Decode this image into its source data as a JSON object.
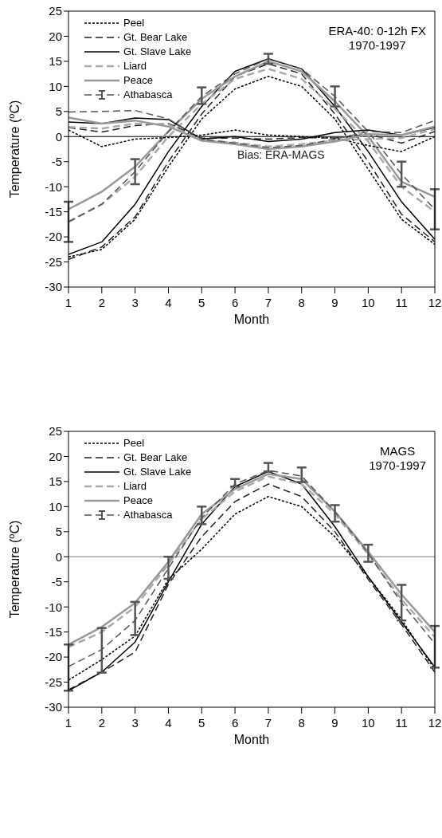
{
  "chart_data": [
    {
      "type": "line",
      "annotations": [
        "ERA-40: 0-12h FX",
        "1970-1997",
        "Bias: ERA-MAGS"
      ],
      "xlabel": "Month",
      "ylabel": "Temperature ($^{o}$C)",
      "x": [
        1,
        2,
        3,
        4,
        5,
        6,
        7,
        8,
        9,
        10,
        11,
        12
      ],
      "xlim": [
        1,
        12
      ],
      "xticks": [
        1,
        2,
        3,
        4,
        5,
        6,
        7,
        8,
        9,
        10,
        11,
        12
      ],
      "ylim": [
        -30,
        25
      ],
      "yticks": [
        -30,
        -25,
        -20,
        -15,
        -10,
        -5,
        0,
        5,
        10,
        15,
        20,
        25
      ],
      "legend": "top left",
      "marker": "none",
      "ref_lines": [
        {
          "axis": "y",
          "value": 0,
          "color": "#000000"
        }
      ],
      "series": [
        {
          "name": "Peel",
          "color": "#000000",
          "line_style": "dotted",
          "values": [
            -24,
            -22.5,
            -16.5,
            -6,
            3.5,
            9.5,
            12,
            10,
            3.5,
            -6.5,
            -16.5,
            -21.5
          ]
        },
        {
          "name": "Gt. Bear Lake",
          "color": "#222222",
          "line_style": "dashed",
          "values": [
            -24.5,
            -22,
            -16,
            -5,
            4.5,
            12,
            14.5,
            12.5,
            4.5,
            -5,
            -15.5,
            -21
          ]
        },
        {
          "name": "Gt. Slave Lake",
          "color": "#000000",
          "line_style": "solid",
          "values": [
            -23.5,
            -21,
            -13.5,
            -3,
            6,
            13,
            15.5,
            13.5,
            6,
            -3,
            -13,
            -20.5
          ]
        },
        {
          "name": "Liard",
          "color": "#aaaaaa",
          "line_style": "dashed",
          "values": [
            -17,
            -13.5,
            -8,
            0,
            6.5,
            11.5,
            13.5,
            11.5,
            5.5,
            -1,
            -10,
            -15
          ]
        },
        {
          "name": "Peace",
          "color": "#999999",
          "line_style": "solid",
          "values": [
            -14.5,
            -11,
            -6,
            1,
            7.5,
            12,
            15,
            13,
            7,
            0,
            -9,
            -12
          ]
        },
        {
          "name": "Athabasca",
          "color": "#555555",
          "line_style": "dashed",
          "values": [
            -17,
            -13.5,
            -7,
            1,
            8,
            12.5,
            15.5,
            13.5,
            8,
            1,
            -7.5,
            -14.5
          ],
          "errors": [
            [
              -21,
              -13
            ],
            null,
            [
              -9.5,
              -4.5
            ],
            null,
            [
              6.5,
              9.8
            ],
            null,
            [
              14.5,
              16.5
            ],
            null,
            [
              6,
              10
            ],
            null,
            [
              -10,
              -5
            ],
            [
              -18.5,
              -10.5
            ]
          ]
        },
        {
          "color": "#000000",
          "line_style": "dotted",
          "values": [
            1.3,
            -2,
            -0.5,
            -0.2,
            0.3,
            1.3,
            0.3,
            0,
            -0.3,
            -1.8,
            -3,
            0
          ]
        },
        {
          "color": "#222222",
          "line_style": "dashed",
          "values": [
            1.8,
            0.9,
            2.2,
            2.6,
            -0.3,
            -0.3,
            -0.5,
            -0.2,
            -0.3,
            0.5,
            -1.3,
            1
          ]
        },
        {
          "color": "#000000",
          "line_style": "solid",
          "values": [
            2.9,
            2.6,
            3.7,
            3.4,
            -0.5,
            0,
            -1,
            -0.5,
            0.8,
            1.3,
            0.3,
            1.8
          ]
        },
        {
          "color": "#aaaaaa",
          "line_style": "dashed",
          "values": [
            1.9,
            1.6,
            2.6,
            2.4,
            -0.8,
            -1.2,
            -2,
            -1.5,
            -0.8,
            -0.5,
            -0.3,
            1.5
          ]
        },
        {
          "color": "#999999",
          "line_style": "solid",
          "values": [
            3.8,
            2.6,
            3.2,
            2,
            -0.8,
            -1.5,
            -2.5,
            -2,
            -1,
            0.5,
            0.3,
            2
          ]
        },
        {
          "color": "#555555",
          "line_style": "dashed",
          "values": [
            4.9,
            5,
            5.2,
            3.5,
            -0.5,
            -1.3,
            -2.2,
            -1.8,
            -0.5,
            1,
            0.8,
            3.2
          ]
        }
      ]
    },
    {
      "type": "line",
      "annotations": [
        "MAGS",
        "1970-1997"
      ],
      "xlabel": "Month",
      "ylabel": "Temperature ($^{o}$C)",
      "x": [
        1,
        2,
        3,
        4,
        5,
        6,
        7,
        8,
        9,
        10,
        11,
        12
      ],
      "xlim": [
        1,
        12
      ],
      "xticks": [
        1,
        2,
        3,
        4,
        5,
        6,
        7,
        8,
        9,
        10,
        11,
        12
      ],
      "ylim": [
        -30,
        25
      ],
      "yticks": [
        -30,
        -25,
        -20,
        -15,
        -10,
        -5,
        0,
        5,
        10,
        15,
        20,
        25
      ],
      "legend": "top left",
      "marker": "none",
      "ref_lines": [
        {
          "axis": "y",
          "value": 0,
          "color": "#777777"
        }
      ],
      "series": [
        {
          "name": "Peel",
          "color": "#000000",
          "line_style": "dotted",
          "values": [
            -24.6,
            -20.5,
            -15.8,
            -4.5,
            1.5,
            8.5,
            12,
            10,
            4,
            -4,
            -12.5,
            -22.5
          ]
        },
        {
          "name": "Gt. Bear Lake",
          "color": "#222222",
          "line_style": "dashed",
          "values": [
            -26.5,
            -23,
            -19,
            -5.5,
            4,
            11,
            14.5,
            12,
            5,
            -4.5,
            -13.5,
            -23
          ]
        },
        {
          "name": "Gt. Slave Lake",
          "color": "#000000",
          "line_style": "solid",
          "values": [
            -26.7,
            -23,
            -17,
            -5,
            6.5,
            14,
            17,
            14.5,
            6,
            -4,
            -13,
            -22
          ]
        },
        {
          "name": "Liard",
          "color": "#aaaaaa",
          "line_style": "dashed",
          "values": [
            -18,
            -15,
            -10,
            -1.5,
            7.5,
            13,
            16,
            14.5,
            8.5,
            0.5,
            -8.5,
            -16
          ]
        },
        {
          "name": "Peace",
          "color": "#999999",
          "line_style": "solid",
          "values": [
            -17.5,
            -14,
            -9.2,
            -1,
            8.5,
            13.5,
            16.5,
            15.5,
            9,
            1,
            -7.5,
            -15
          ]
        },
        {
          "name": "Athabasca",
          "color": "#555555",
          "line_style": "dashed",
          "values": [
            -21.9,
            -18.5,
            -12.7,
            -2.3,
            7.8,
            14.5,
            17.2,
            16.1,
            9,
            0.7,
            -9.2,
            -17.3
          ],
          "errors": [
            [
              -26.7,
              -17.5
            ],
            [
              -23.1,
              -14.2
            ],
            [
              -15.6,
              -9
            ],
            [
              -4.4,
              0
            ],
            [
              6.5,
              10
            ],
            [
              14,
              15.5
            ],
            [
              17,
              18.7
            ],
            [
              14.9,
              17.8
            ],
            [
              7,
              10.3
            ],
            [
              -1,
              2.4
            ],
            [
              -12.7,
              -5.6
            ],
            [
              -22.1,
              -13.8
            ]
          ]
        }
      ]
    }
  ]
}
